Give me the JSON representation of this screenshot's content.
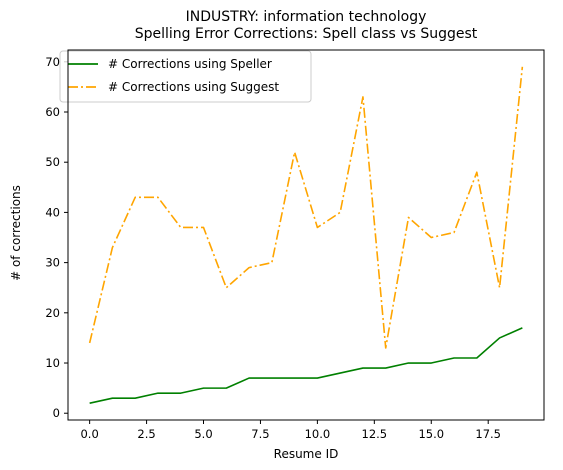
{
  "chart_data": {
    "type": "line",
    "title": "INDUSTRY: information technology",
    "subtitle": "Spelling Error Corrections: Spell class vs Suggest",
    "xlabel": "Resume ID",
    "ylabel": "# of corrections",
    "xlim": [
      -0.95,
      19.95
    ],
    "ylim": [
      -1.35,
      72.35
    ],
    "x_ticks": [
      0.0,
      2.5,
      5.0,
      7.5,
      10.0,
      12.5,
      15.0,
      17.5
    ],
    "x_tick_labels": [
      "0.0",
      "2.5",
      "5.0",
      "7.5",
      "10.0",
      "12.5",
      "15.0",
      "17.5"
    ],
    "y_ticks": [
      0,
      10,
      20,
      30,
      40,
      50,
      60,
      70
    ],
    "y_tick_labels": [
      "0",
      "10",
      "20",
      "30",
      "40",
      "50",
      "60",
      "70"
    ],
    "grid": false,
    "legend_position": "upper-left",
    "x": [
      0,
      1,
      2,
      3,
      4,
      5,
      6,
      7,
      8,
      9,
      10,
      11,
      12,
      13,
      14,
      15,
      16,
      17,
      18,
      19
    ],
    "series": [
      {
        "name": "# Corrections using Speller",
        "color": "#008000",
        "style": "solid",
        "values": [
          2,
          3,
          3,
          4,
          4,
          5,
          5,
          7,
          7,
          7,
          7,
          8,
          9,
          9,
          10,
          10,
          11,
          11,
          15,
          17
        ]
      },
      {
        "name": "# Corrections using Suggest",
        "color": "#FFA500",
        "style": "dashdot",
        "values": [
          14,
          33,
          43,
          43,
          37,
          37,
          25,
          29,
          30,
          52,
          37,
          40,
          63,
          13,
          39,
          35,
          36,
          48,
          25,
          69
        ]
      }
    ]
  }
}
